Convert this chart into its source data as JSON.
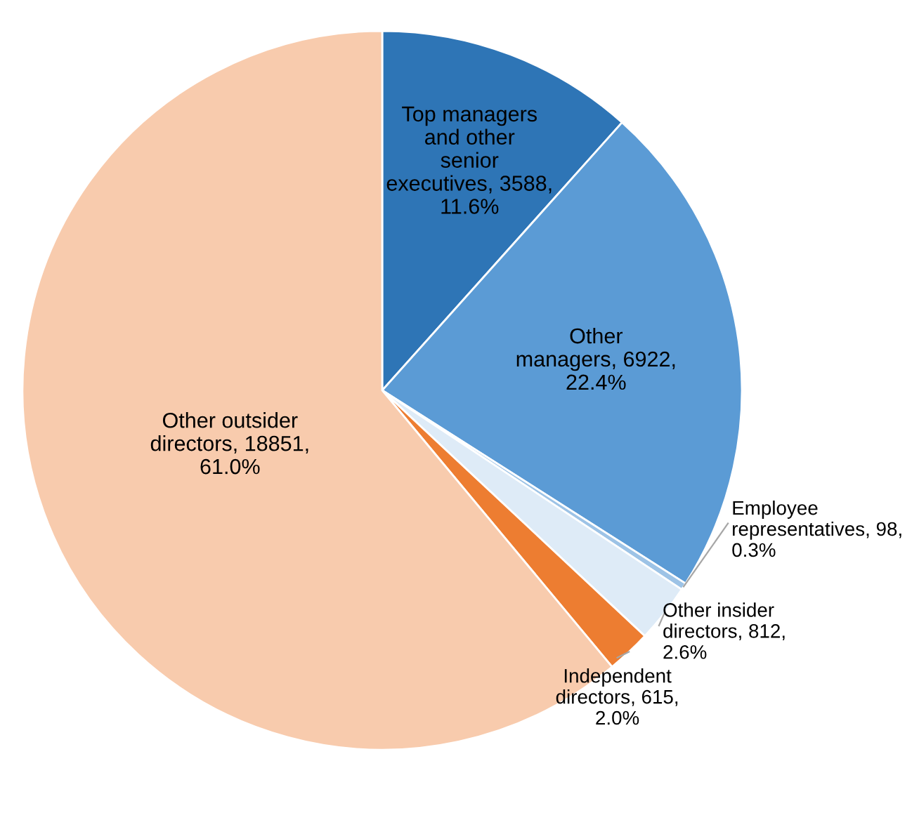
{
  "chart_data": {
    "type": "pie",
    "categories": [
      "Top managers and other senior executives",
      "Other managers",
      "Employee representatives",
      "Other insider directors",
      "Independent directors",
      "Other outsider directors"
    ],
    "values": [
      3588,
      6922,
      98,
      812,
      615,
      18851
    ],
    "value_labels": [
      "3588, 11.6%",
      "6922, 22.4%",
      "98, 0.3%",
      "812, 2.6%",
      "615, 2.0%",
      "18851, 61.0%"
    ],
    "colors": [
      "#2e75b6",
      "#5b9bd5",
      "#9dc3e6",
      "#deebf7",
      "#ed7d31",
      "#f8cbad"
    ],
    "legend": false
  }
}
